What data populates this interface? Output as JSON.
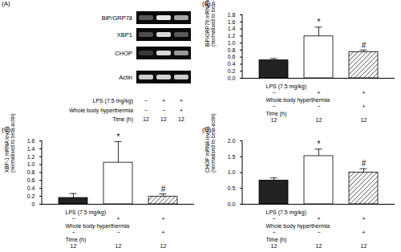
{
  "chart_data": [
    {
      "type": "bar",
      "panel_label": "(B)",
      "ylabel": "BiP/GRP78 mRNA levels (normalised to beta-actin)",
      "categories": [
        null,
        null,
        null
      ],
      "values": [
        0.51,
        1.19,
        0.74
      ],
      "errors": [
        0.05,
        0.26,
        0.06
      ],
      "colors": [
        "#222222",
        "#ffffff",
        "#444444"
      ],
      "significance": [
        null,
        "*",
        "#"
      ],
      "ylim": [
        0,
        1.8
      ],
      "yticks": [
        {
          "value": 0,
          "label": "0.0"
        },
        0.2,
        0.4,
        0.6,
        0.8,
        {
          "value": 1,
          "label": "1.0"
        },
        1.2,
        1.4,
        1.6,
        1.8
      ],
      "tick_labels": "y",
      "conditions": [
        {
          "label": "LPS (7.5 mg/kg)",
          "values": [
            "−",
            "+",
            "+"
          ]
        },
        {
          "label": "Whole body hyperthermia",
          "values": [
            "−",
            "−",
            "+"
          ]
        },
        {
          "label": "Time (h)",
          "values": [
            12,
            12,
            12
          ]
        }
      ]
    },
    {
      "type": "bar",
      "panel_label": "(C)",
      "ylabel": "XBP-1 mRNA levels (normalised to beta-actin)",
      "categories": [
        null,
        null,
        null
      ],
      "values": [
        0.16,
        1.05,
        0.19
      ],
      "errors": [
        0.11,
        0.53,
        0.07
      ],
      "colors": [
        "#222222",
        "#ffffff",
        "#444444"
      ],
      "significance": [
        null,
        "*",
        "#"
      ],
      "ylim": [
        0,
        1.6
      ],
      "yticks": [
        0,
        0.2,
        0.4,
        0.6,
        0.8,
        {
          "value": 1,
          "label": "1.0"
        },
        1.2,
        1.4,
        1.6
      ],
      "tick_labels": "y",
      "conditions": [
        {
          "label": "LPS (7.5 mg/kg)",
          "values": [
            "−",
            "+",
            "+"
          ]
        },
        {
          "label": "Whole body hyperthermia",
          "values": [
            "−",
            "−",
            "+"
          ]
        },
        {
          "label": "Time (h)",
          "values": [
            12,
            12,
            12
          ]
        }
      ]
    },
    {
      "type": "bar",
      "panel_label": "(D)",
      "ylabel": "CHOP mRNA levels (normalised to beta-actin)",
      "categories": [
        null,
        null,
        null
      ],
      "values": [
        0.75,
        1.52,
        1.0
      ],
      "errors": [
        0.08,
        0.22,
        0.12
      ],
      "colors": [
        "#222222",
        "#ffffff",
        "#444444"
      ],
      "significance": [
        null,
        "*",
        "#"
      ],
      "ylim": [
        0,
        2.0
      ],
      "yticks": [
        {
          "value": 0,
          "label": "0.0"
        },
        0.5,
        {
          "value": 1,
          "label": "1.0"
        },
        1.5,
        {
          "value": 2,
          "label": "2.0"
        }
      ],
      "tick_labels": "y",
      "conditions": [
        {
          "label": "LPS (7.5 mg/kg)",
          "values": [
            "−",
            "+",
            "+"
          ]
        },
        {
          "label": "Whole body hyperthermia",
          "values": [
            "−",
            "−",
            "+"
          ]
        },
        {
          "label": "Time (h)",
          "values": [
            12,
            12,
            12
          ]
        }
      ]
    }
  ],
  "gel": {
    "panel_label": "(A)",
    "bands": [
      "BiP/GRP78",
      "XBP1",
      "CHOP",
      "Actin"
    ],
    "conditions": [
      {
        "label": "LPS (7.5 mg/kg)",
        "values": [
          "−",
          "+",
          "+"
        ]
      },
      {
        "label": "Whole body hyperthermia",
        "values": [
          "−",
          "−",
          "+"
        ]
      },
      {
        "label": "Time (h)",
        "values": [
          12,
          12,
          12
        ]
      }
    ]
  }
}
